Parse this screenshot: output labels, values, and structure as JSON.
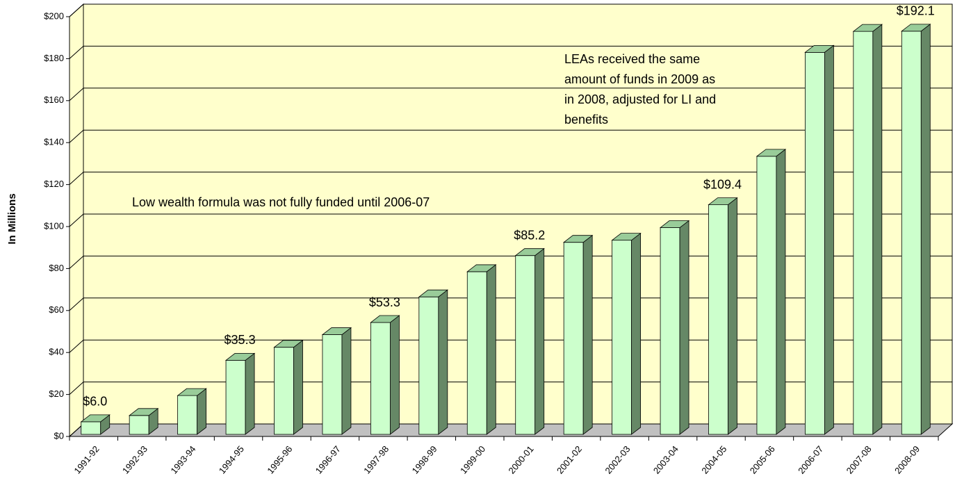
{
  "chart_data": {
    "type": "bar3d",
    "y_axis_label": "In Millions",
    "categories": [
      "1991-92",
      "1992-93",
      "1993-94",
      "1994-95",
      "1995-96",
      "1996-97",
      "1997-98",
      "1998-99",
      "1999-00",
      "2000-01",
      "2001-02",
      "2002-03",
      "2003-04",
      "2004-05",
      "2005-06",
      "2006-07",
      "2007-08",
      "2008-09"
    ],
    "values": [
      6.0,
      9,
      18.5,
      35.3,
      41.5,
      47.5,
      53.3,
      65.5,
      77.5,
      85.2,
      91.5,
      92.5,
      98.5,
      109.4,
      132.5,
      182,
      192,
      192.1
    ],
    "value_labels": [
      "$6.0",
      null,
      null,
      "$35.3",
      null,
      null,
      "$53.3",
      null,
      null,
      "$85.2",
      null,
      null,
      null,
      "$109.4",
      null,
      null,
      null,
      "$192.1"
    ],
    "colors": {
      "front": "#ccffcc",
      "side": "#668866",
      "top": "#99cc99",
      "wall": "#ffffcc",
      "floor": "#c0c0c0"
    },
    "ylim": [
      0,
      200
    ],
    "yticks": [
      {
        "value": 0,
        "label": "$0"
      },
      {
        "value": 20,
        "label": "$20"
      },
      {
        "value": 40,
        "label": "$40"
      },
      {
        "value": 60,
        "label": "$60"
      },
      {
        "value": 80,
        "label": "$80"
      },
      {
        "value": 100,
        "label": "$100"
      },
      {
        "value": 120,
        "label": "$120"
      },
      {
        "value": 140,
        "label": "$140"
      },
      {
        "value": 160,
        "label": "$160"
      },
      {
        "value": 180,
        "label": "$180"
      },
      {
        "value": 200,
        "label": "$200"
      }
    ],
    "grid": true,
    "annotations": [
      {
        "lines": [
          "Low wealth formula was not fully funded until 2006-07"
        ]
      },
      {
        "lines": [
          "LEAs received the same",
          "amount of funds in 2009 as",
          "in 2008, adjusted for LI and",
          "benefits"
        ]
      }
    ]
  }
}
